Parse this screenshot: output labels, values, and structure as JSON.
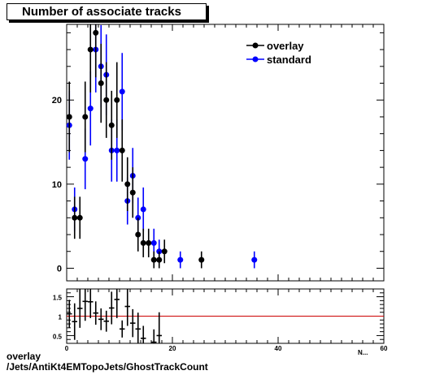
{
  "chart_data": [
    {
      "type": "scatter",
      "title": "Number of associate tracks",
      "xlabel": "",
      "ylabel": "",
      "xlim": [
        0,
        60
      ],
      "ylim": [
        -1.5,
        29
      ],
      "yticks": [
        0,
        10,
        20
      ],
      "legend_position": "top-right",
      "series": [
        {
          "name": "overlay",
          "color": "#000000",
          "points": [
            {
              "x": 0.5,
              "y": 18,
              "err": 4.2
            },
            {
              "x": 1.5,
              "y": 6,
              "err": 2.5
            },
            {
              "x": 2.5,
              "y": 6,
              "err": 2.5
            },
            {
              "x": 3.5,
              "y": 18,
              "err": 4.2
            },
            {
              "x": 4.5,
              "y": 26,
              "err": 5.1
            },
            {
              "x": 5.5,
              "y": 28,
              "err": 5.3
            },
            {
              "x": 6.5,
              "y": 22,
              "err": 4.7
            },
            {
              "x": 7.5,
              "y": 20,
              "err": 4.5
            },
            {
              "x": 8.5,
              "y": 17,
              "err": 4.1
            },
            {
              "x": 9.5,
              "y": 20,
              "err": 4.5
            },
            {
              "x": 10.5,
              "y": 14,
              "err": 3.7
            },
            {
              "x": 11.5,
              "y": 10,
              "err": 3.2
            },
            {
              "x": 12.5,
              "y": 9,
              "err": 3.0
            },
            {
              "x": 13.5,
              "y": 4,
              "err": 2.0
            },
            {
              "x": 14.5,
              "y": 3,
              "err": 1.7
            },
            {
              "x": 15.5,
              "y": 3,
              "err": 1.7
            },
            {
              "x": 16.5,
              "y": 1,
              "err": 1.0
            },
            {
              "x": 17.5,
              "y": 1,
              "err": 1.0
            },
            {
              "x": 18.5,
              "y": 2,
              "err": 1.4
            },
            {
              "x": 25.5,
              "y": 1,
              "err": 1.0
            }
          ]
        },
        {
          "name": "standard",
          "color": "#0000ff",
          "points": [
            {
              "x": 0.5,
              "y": 17,
              "err": 4.1
            },
            {
              "x": 1.5,
              "y": 7,
              "err": 2.6
            },
            {
              "x": 3.5,
              "y": 13,
              "err": 3.6
            },
            {
              "x": 4.5,
              "y": 19,
              "err": 4.4
            },
            {
              "x": 5.5,
              "y": 26,
              "err": 5.1
            },
            {
              "x": 6.5,
              "y": 24,
              "err": 4.9
            },
            {
              "x": 7.5,
              "y": 23,
              "err": 4.8
            },
            {
              "x": 8.5,
              "y": 14,
              "err": 3.7
            },
            {
              "x": 9.5,
              "y": 14,
              "err": 3.7
            },
            {
              "x": 10.5,
              "y": 21,
              "err": 4.6
            },
            {
              "x": 11.5,
              "y": 8,
              "err": 2.8
            },
            {
              "x": 12.5,
              "y": 11,
              "err": 3.3
            },
            {
              "x": 13.5,
              "y": 6,
              "err": 2.4
            },
            {
              "x": 14.5,
              "y": 7,
              "err": 2.6
            },
            {
              "x": 16.5,
              "y": 3,
              "err": 1.7
            },
            {
              "x": 17.5,
              "y": 2,
              "err": 1.4
            },
            {
              "x": 21.5,
              "y": 1,
              "err": 1.0
            },
            {
              "x": 35.5,
              "y": 1,
              "err": 1.0
            }
          ]
        }
      ]
    },
    {
      "type": "scatter",
      "title": "",
      "xlabel": "",
      "ylabel": "",
      "xlim": [
        0,
        60
      ],
      "ylim": [
        0.3,
        1.7
      ],
      "yticks": [
        0.5,
        1,
        1.5
      ],
      "xticks": [
        0,
        20,
        40,
        60
      ],
      "reference_line": {
        "y": 1,
        "color": "#cc0000"
      },
      "series": [
        {
          "name": "",
          "color": "#000000",
          "points": [
            {
              "x": 0.5,
              "y": 1.06,
              "err": 0.36
            },
            {
              "x": 1.5,
              "y": 0.86,
              "err": 0.47
            },
            {
              "x": 2.5,
              "y": 1.2,
              "err": 0.5
            },
            {
              "x": 3.5,
              "y": 1.38,
              "err": 0.5
            },
            {
              "x": 4.5,
              "y": 1.37,
              "err": 0.42
            },
            {
              "x": 5.5,
              "y": 1.08,
              "err": 0.3
            },
            {
              "x": 6.5,
              "y": 0.92,
              "err": 0.28
            },
            {
              "x": 7.5,
              "y": 0.87,
              "err": 0.27
            },
            {
              "x": 8.5,
              "y": 1.21,
              "err": 0.42
            },
            {
              "x": 9.5,
              "y": 1.43,
              "err": 0.48
            },
            {
              "x": 10.5,
              "y": 0.67,
              "err": 0.22
            },
            {
              "x": 11.5,
              "y": 1.25,
              "err": 0.5
            },
            {
              "x": 12.5,
              "y": 0.82,
              "err": 0.36
            },
            {
              "x": 13.5,
              "y": 0.67,
              "err": 0.42
            },
            {
              "x": 14.5,
              "y": 0.43,
              "err": 0.32
            },
            {
              "x": 16.5,
              "y": 0.33,
              "err": 0.33
            },
            {
              "x": 17.5,
              "y": 0.5,
              "err": 0.6
            }
          ]
        }
      ]
    }
  ],
  "footer": {
    "line1": "overlay",
    "line2": "/Jets/AntiKt4EMTopoJets/GhostTrackCount"
  },
  "axis_text": {
    "x_partial": "N..."
  }
}
